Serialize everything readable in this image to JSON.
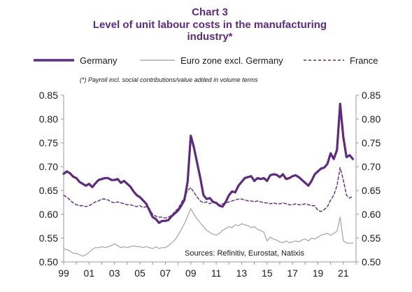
{
  "chart_data": {
    "type": "line",
    "title_line1": "Chart 3",
    "title_line2": "Level of unit labour costs in the manufacturing",
    "title_line3": "industry*",
    "note": "(*) Payroll incl. social contributions/value added in volume terms",
    "source": "Sources: Refinitiv, Eurostat, Natixis",
    "colors": {
      "title": "#5e2a83",
      "germany": "#5e2a83",
      "euro_zone": "#aaaaaa",
      "france": "#5e2a83",
      "axis": "#999999"
    },
    "ylim": [
      0.5,
      0.85
    ],
    "xlim": [
      1999.0,
      2022.0
    ],
    "y_ticks": [
      "0.50",
      "0.55",
      "0.60",
      "0.65",
      "0.70",
      "0.75",
      "0.80",
      "0.85"
    ],
    "x_ticks": [
      "99",
      "01",
      "03",
      "05",
      "07",
      "09",
      "11",
      "13",
      "15",
      "17",
      "19",
      "21"
    ],
    "legend_position": "top",
    "series": [
      {
        "name": "Germany",
        "style": "solid-thick",
        "points": [
          [
            1999.0,
            0.685
          ],
          [
            1999.25,
            0.69
          ],
          [
            1999.5,
            0.686
          ],
          [
            1999.75,
            0.679
          ],
          [
            2000.0,
            0.676
          ],
          [
            2000.25,
            0.668
          ],
          [
            2000.5,
            0.664
          ],
          [
            2000.75,
            0.66
          ],
          [
            2001.0,
            0.664
          ],
          [
            2001.25,
            0.657
          ],
          [
            2001.5,
            0.665
          ],
          [
            2001.75,
            0.672
          ],
          [
            2002.0,
            0.674
          ],
          [
            2002.25,
            0.676
          ],
          [
            2002.5,
            0.676
          ],
          [
            2002.75,
            0.672
          ],
          [
            2003.0,
            0.672
          ],
          [
            2003.25,
            0.674
          ],
          [
            2003.5,
            0.666
          ],
          [
            2003.75,
            0.67
          ],
          [
            2004.0,
            0.664
          ],
          [
            2004.25,
            0.658
          ],
          [
            2004.5,
            0.648
          ],
          [
            2004.75,
            0.64
          ],
          [
            2005.0,
            0.636
          ],
          [
            2005.25,
            0.629
          ],
          [
            2005.5,
            0.622
          ],
          [
            2005.75,
            0.608
          ],
          [
            2006.0,
            0.594
          ],
          [
            2006.25,
            0.59
          ],
          [
            2006.5,
            0.582
          ],
          [
            2006.75,
            0.586
          ],
          [
            2007.0,
            0.586
          ],
          [
            2007.25,
            0.588
          ],
          [
            2007.5,
            0.596
          ],
          [
            2007.75,
            0.602
          ],
          [
            2008.0,
            0.608
          ],
          [
            2008.25,
            0.618
          ],
          [
            2008.5,
            0.63
          ],
          [
            2008.75,
            0.668
          ],
          [
            2009.0,
            0.765
          ],
          [
            2009.25,
            0.74
          ],
          [
            2009.5,
            0.708
          ],
          [
            2009.75,
            0.676
          ],
          [
            2010.0,
            0.64
          ],
          [
            2010.25,
            0.632
          ],
          [
            2010.5,
            0.634
          ],
          [
            2010.75,
            0.626
          ],
          [
            2011.0,
            0.624
          ],
          [
            2011.25,
            0.618
          ],
          [
            2011.5,
            0.616
          ],
          [
            2011.75,
            0.626
          ],
          [
            2012.0,
            0.64
          ],
          [
            2012.25,
            0.648
          ],
          [
            2012.5,
            0.646
          ],
          [
            2012.75,
            0.66
          ],
          [
            2013.0,
            0.668
          ],
          [
            2013.25,
            0.676
          ],
          [
            2013.5,
            0.678
          ],
          [
            2013.75,
            0.68
          ],
          [
            2014.0,
            0.67
          ],
          [
            2014.25,
            0.676
          ],
          [
            2014.5,
            0.674
          ],
          [
            2014.75,
            0.676
          ],
          [
            2015.0,
            0.67
          ],
          [
            2015.25,
            0.682
          ],
          [
            2015.5,
            0.684
          ],
          [
            2015.75,
            0.683
          ],
          [
            2016.0,
            0.678
          ],
          [
            2016.25,
            0.684
          ],
          [
            2016.5,
            0.674
          ],
          [
            2016.75,
            0.676
          ],
          [
            2017.0,
            0.68
          ],
          [
            2017.25,
            0.682
          ],
          [
            2017.5,
            0.678
          ],
          [
            2017.75,
            0.672
          ],
          [
            2018.0,
            0.666
          ],
          [
            2018.25,
            0.66
          ],
          [
            2018.5,
            0.67
          ],
          [
            2018.75,
            0.684
          ],
          [
            2019.0,
            0.69
          ],
          [
            2019.25,
            0.696
          ],
          [
            2019.5,
            0.698
          ],
          [
            2019.75,
            0.706
          ],
          [
            2020.0,
            0.728
          ],
          [
            2020.25,
            0.716
          ],
          [
            2020.5,
            0.735
          ],
          [
            2020.75,
            0.832
          ],
          [
            2021.0,
            0.762
          ],
          [
            2021.25,
            0.72
          ],
          [
            2021.5,
            0.724
          ],
          [
            2021.75,
            0.716
          ]
        ]
      },
      {
        "name": "Euro zone excl. Germany",
        "style": "solid-thin",
        "points": [
          [
            1999.0,
            0.527
          ],
          [
            1999.25,
            0.526
          ],
          [
            1999.5,
            0.523
          ],
          [
            1999.75,
            0.518
          ],
          [
            2000.0,
            0.518
          ],
          [
            2000.25,
            0.515
          ],
          [
            2000.5,
            0.512
          ],
          [
            2000.75,
            0.515
          ],
          [
            2001.0,
            0.52
          ],
          [
            2001.25,
            0.526
          ],
          [
            2001.5,
            0.53
          ],
          [
            2001.75,
            0.53
          ],
          [
            2002.0,
            0.532
          ],
          [
            2002.25,
            0.53
          ],
          [
            2002.5,
            0.532
          ],
          [
            2002.75,
            0.534
          ],
          [
            2003.0,
            0.538
          ],
          [
            2003.25,
            0.534
          ],
          [
            2003.5,
            0.53
          ],
          [
            2003.75,
            0.532
          ],
          [
            2004.0,
            0.53
          ],
          [
            2004.25,
            0.532
          ],
          [
            2004.5,
            0.534
          ],
          [
            2004.75,
            0.532
          ],
          [
            2005.0,
            0.532
          ],
          [
            2005.25,
            0.53
          ],
          [
            2005.5,
            0.532
          ],
          [
            2005.75,
            0.53
          ],
          [
            2006.0,
            0.528
          ],
          [
            2006.25,
            0.532
          ],
          [
            2006.5,
            0.528
          ],
          [
            2006.75,
            0.53
          ],
          [
            2007.0,
            0.53
          ],
          [
            2007.25,
            0.534
          ],
          [
            2007.5,
            0.54
          ],
          [
            2007.75,
            0.546
          ],
          [
            2008.0,
            0.556
          ],
          [
            2008.25,
            0.568
          ],
          [
            2008.5,
            0.58
          ],
          [
            2008.75,
            0.596
          ],
          [
            2009.0,
            0.612
          ],
          [
            2009.25,
            0.6
          ],
          [
            2009.5,
            0.59
          ],
          [
            2009.75,
            0.582
          ],
          [
            2010.0,
            0.574
          ],
          [
            2010.25,
            0.566
          ],
          [
            2010.5,
            0.562
          ],
          [
            2010.75,
            0.558
          ],
          [
            2011.0,
            0.556
          ],
          [
            2011.25,
            0.56
          ],
          [
            2011.5,
            0.566
          ],
          [
            2011.75,
            0.57
          ],
          [
            2012.0,
            0.574
          ],
          [
            2012.25,
            0.572
          ],
          [
            2012.5,
            0.578
          ],
          [
            2012.75,
            0.576
          ],
          [
            2013.0,
            0.58
          ],
          [
            2013.25,
            0.578
          ],
          [
            2013.5,
            0.576
          ],
          [
            2013.75,
            0.572
          ],
          [
            2014.0,
            0.574
          ],
          [
            2014.25,
            0.568
          ],
          [
            2014.5,
            0.566
          ],
          [
            2014.75,
            0.562
          ],
          [
            2015.0,
            0.544
          ],
          [
            2015.25,
            0.552
          ],
          [
            2015.5,
            0.548
          ],
          [
            2015.75,
            0.546
          ],
          [
            2016.0,
            0.542
          ],
          [
            2016.25,
            0.54
          ],
          [
            2016.5,
            0.544
          ],
          [
            2016.75,
            0.54
          ],
          [
            2017.0,
            0.542
          ],
          [
            2017.25,
            0.544
          ],
          [
            2017.5,
            0.542
          ],
          [
            2017.75,
            0.546
          ],
          [
            2018.0,
            0.548
          ],
          [
            2018.25,
            0.544
          ],
          [
            2018.5,
            0.55
          ],
          [
            2018.75,
            0.548
          ],
          [
            2019.0,
            0.552
          ],
          [
            2019.25,
            0.556
          ],
          [
            2019.5,
            0.558
          ],
          [
            2019.75,
            0.56
          ],
          [
            2020.0,
            0.556
          ],
          [
            2020.25,
            0.56
          ],
          [
            2020.5,
            0.564
          ],
          [
            2020.75,
            0.594
          ],
          [
            2021.0,
            0.544
          ],
          [
            2021.25,
            0.54
          ],
          [
            2021.5,
            0.539
          ],
          [
            2021.75,
            0.54
          ]
        ]
      },
      {
        "name": "France",
        "style": "dashed",
        "points": [
          [
            1999.0,
            0.64
          ],
          [
            1999.25,
            0.636
          ],
          [
            1999.5,
            0.63
          ],
          [
            1999.75,
            0.624
          ],
          [
            2000.0,
            0.62
          ],
          [
            2000.25,
            0.618
          ],
          [
            2000.5,
            0.618
          ],
          [
            2000.75,
            0.616
          ],
          [
            2001.0,
            0.618
          ],
          [
            2001.25,
            0.622
          ],
          [
            2001.5,
            0.626
          ],
          [
            2001.75,
            0.628
          ],
          [
            2002.0,
            0.632
          ],
          [
            2002.25,
            0.632
          ],
          [
            2002.5,
            0.63
          ],
          [
            2002.75,
            0.626
          ],
          [
            2003.0,
            0.624
          ],
          [
            2003.25,
            0.626
          ],
          [
            2003.5,
            0.624
          ],
          [
            2003.75,
            0.622
          ],
          [
            2004.0,
            0.62
          ],
          [
            2004.25,
            0.62
          ],
          [
            2004.5,
            0.618
          ],
          [
            2004.75,
            0.616
          ],
          [
            2005.0,
            0.618
          ],
          [
            2005.25,
            0.614
          ],
          [
            2005.5,
            0.616
          ],
          [
            2005.75,
            0.612
          ],
          [
            2006.0,
            0.6
          ],
          [
            2006.25,
            0.596
          ],
          [
            2006.5,
            0.594
          ],
          [
            2006.75,
            0.594
          ],
          [
            2007.0,
            0.592
          ],
          [
            2007.25,
            0.594
          ],
          [
            2007.5,
            0.598
          ],
          [
            2007.75,
            0.606
          ],
          [
            2008.0,
            0.612
          ],
          [
            2008.25,
            0.624
          ],
          [
            2008.5,
            0.636
          ],
          [
            2008.75,
            0.65
          ],
          [
            2009.0,
            0.656
          ],
          [
            2009.25,
            0.646
          ],
          [
            2009.5,
            0.636
          ],
          [
            2009.75,
            0.628
          ],
          [
            2010.0,
            0.624
          ],
          [
            2010.25,
            0.626
          ],
          [
            2010.5,
            0.622
          ],
          [
            2010.75,
            0.626
          ],
          [
            2011.0,
            0.622
          ],
          [
            2011.25,
            0.62
          ],
          [
            2011.5,
            0.622
          ],
          [
            2011.75,
            0.624
          ],
          [
            2012.0,
            0.626
          ],
          [
            2012.25,
            0.628
          ],
          [
            2012.5,
            0.63
          ],
          [
            2012.75,
            0.632
          ],
          [
            2013.0,
            0.632
          ],
          [
            2013.25,
            0.63
          ],
          [
            2013.5,
            0.628
          ],
          [
            2013.75,
            0.628
          ],
          [
            2014.0,
            0.626
          ],
          [
            2014.25,
            0.628
          ],
          [
            2014.5,
            0.626
          ],
          [
            2014.75,
            0.624
          ],
          [
            2015.0,
            0.624
          ],
          [
            2015.25,
            0.622
          ],
          [
            2015.5,
            0.624
          ],
          [
            2015.75,
            0.622
          ],
          [
            2016.0,
            0.622
          ],
          [
            2016.25,
            0.624
          ],
          [
            2016.5,
            0.622
          ],
          [
            2016.75,
            0.62
          ],
          [
            2017.0,
            0.62
          ],
          [
            2017.25,
            0.622
          ],
          [
            2017.5,
            0.62
          ],
          [
            2017.75,
            0.62
          ],
          [
            2018.0,
            0.622
          ],
          [
            2018.25,
            0.62
          ],
          [
            2018.5,
            0.618
          ],
          [
            2018.75,
            0.618
          ],
          [
            2019.0,
            0.608
          ],
          [
            2019.25,
            0.606
          ],
          [
            2019.5,
            0.61
          ],
          [
            2019.75,
            0.616
          ],
          [
            2020.0,
            0.63
          ],
          [
            2020.25,
            0.64
          ],
          [
            2020.5,
            0.66
          ],
          [
            2020.75,
            0.698
          ],
          [
            2021.0,
            0.672
          ],
          [
            2021.25,
            0.64
          ],
          [
            2021.5,
            0.634
          ],
          [
            2021.75,
            0.638
          ]
        ]
      }
    ]
  }
}
